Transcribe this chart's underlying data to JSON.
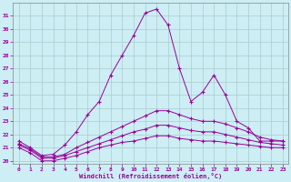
{
  "x": [
    0,
    1,
    2,
    3,
    4,
    5,
    6,
    7,
    8,
    9,
    10,
    11,
    12,
    13,
    14,
    15,
    16,
    17,
    18,
    19,
    20,
    21,
    22,
    23
  ],
  "line1": [
    21.5,
    21.0,
    20.4,
    20.5,
    21.2,
    22.2,
    23.5,
    24.5,
    26.5,
    28.0,
    29.5,
    31.2,
    31.5,
    30.3,
    27.0,
    24.5,
    25.2,
    26.5,
    25.0,
    23.0,
    22.5,
    21.5,
    21.5,
    21.5
  ],
  "line2": [
    21.3,
    20.9,
    20.3,
    20.3,
    20.5,
    21.0,
    21.4,
    21.8,
    22.2,
    22.6,
    23.0,
    23.4,
    23.8,
    23.8,
    23.5,
    23.2,
    23.0,
    23.0,
    22.8,
    22.5,
    22.2,
    21.8,
    21.6,
    21.5
  ],
  "line3": [
    21.2,
    20.8,
    20.2,
    20.2,
    20.4,
    20.7,
    21.0,
    21.3,
    21.6,
    21.9,
    22.2,
    22.4,
    22.7,
    22.7,
    22.5,
    22.3,
    22.2,
    22.2,
    22.0,
    21.8,
    21.6,
    21.4,
    21.3,
    21.2
  ],
  "line4": [
    21.0,
    20.6,
    20.0,
    20.0,
    20.2,
    20.4,
    20.7,
    21.0,
    21.2,
    21.4,
    21.5,
    21.7,
    21.9,
    21.9,
    21.7,
    21.6,
    21.5,
    21.5,
    21.4,
    21.3,
    21.2,
    21.1,
    21.0,
    21.0
  ],
  "line_color": "#990099",
  "bg_color": "#cceef4",
  "grid_color": "#aacccc",
  "xlabel": "Windchill (Refroidissement éolien,°C)",
  "ylim": [
    19.8,
    32.0
  ],
  "xlim": [
    -0.5,
    23.5
  ],
  "yticks": [
    20,
    21,
    22,
    23,
    24,
    25,
    26,
    27,
    28,
    29,
    30,
    31
  ],
  "xticks": [
    0,
    1,
    2,
    3,
    4,
    5,
    6,
    7,
    8,
    9,
    10,
    11,
    12,
    13,
    14,
    15,
    16,
    17,
    18,
    19,
    20,
    21,
    22,
    23
  ]
}
